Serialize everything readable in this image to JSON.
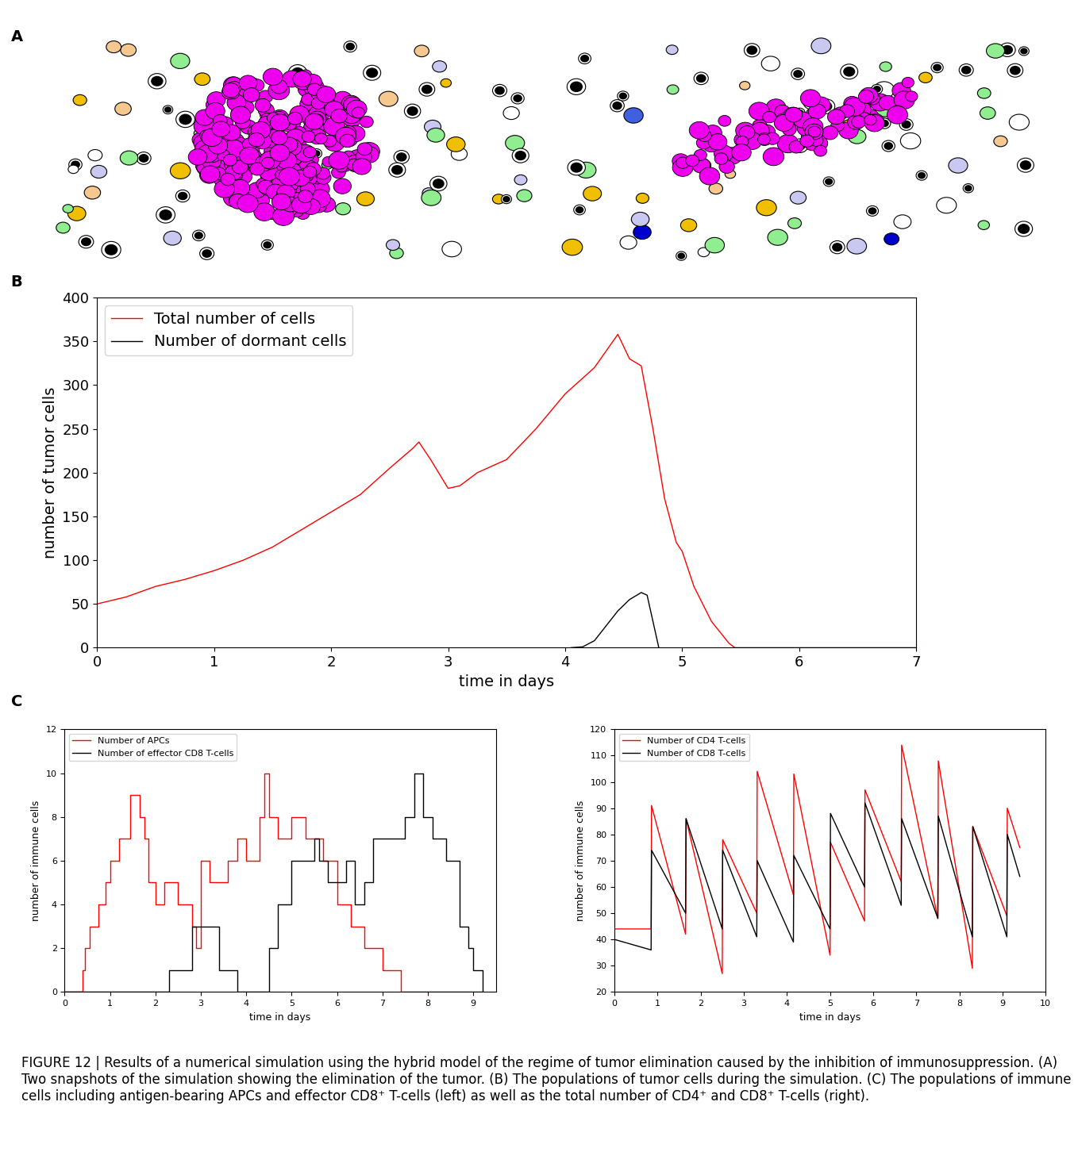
{
  "panel_labels": [
    "A",
    "B",
    "C"
  ],
  "caption": "FIGURE 12 | Results of a numerical simulation using the hybrid model of the regime of tumor elimination caused by the inhibition of immunosuppression. (A) Two snapshots of the simulation showing the elimination of the tumor. (B) The populations of tumor cells during the simulation. (C) The populations of immune cells including antigen-bearing APCs and effector CD8⁺ T-cells (left) as well as the total number of CD4⁺ and CD8⁺ T-cells (right).",
  "chart_data": [
    {
      "type": "line",
      "x_label": "time in days",
      "y_label": "number of tumor cells",
      "xlim": [
        0,
        7
      ],
      "xticks": [
        0,
        1,
        2,
        3,
        4,
        5,
        6,
        7
      ],
      "ylim": [
        0,
        400
      ],
      "yticks": [
        0,
        50,
        100,
        150,
        200,
        250,
        300,
        350,
        400
      ],
      "legend": "upper left",
      "grid": false,
      "series": [
        {
          "name": "Total number of cells",
          "color": "#ff0000",
          "line_style": "solid",
          "x": [
            0,
            0.25,
            0.5,
            0.75,
            1,
            1.25,
            1.5,
            1.75,
            2,
            2.25,
            2.5,
            2.7,
            2.75,
            2.85,
            3,
            3.1,
            3.25,
            3.5,
            3.75,
            4,
            4.25,
            4.45,
            4.55,
            4.65,
            4.75,
            4.85,
            4.95,
            5,
            5.1,
            5.25,
            5.4,
            5.45,
            7
          ],
          "values": [
            50,
            58,
            70,
            78,
            88,
            100,
            115,
            135,
            155,
            175,
            205,
            228,
            235,
            215,
            182,
            185,
            200,
            215,
            250,
            290,
            320,
            358,
            330,
            322,
            250,
            170,
            120,
            110,
            70,
            30,
            5,
            0,
            0
          ]
        },
        {
          "name": "Number of dormant cells",
          "color": "#000000",
          "line_style": "solid",
          "x": [
            4.05,
            4.15,
            4.25,
            4.35,
            4.45,
            4.55,
            4.65,
            4.7,
            4.75,
            4.8
          ],
          "values": [
            0,
            1,
            8,
            25,
            42,
            55,
            63,
            60,
            30,
            0
          ]
        }
      ]
    },
    {
      "type": "line",
      "x_label": "time in days",
      "y_label": "number of immune cells",
      "xlim": [
        0,
        9.5
      ],
      "xticks": [
        0,
        1,
        2,
        3,
        4,
        5,
        6,
        7,
        8,
        9
      ],
      "ylim": [
        0,
        12
      ],
      "yticks": [
        0,
        2,
        4,
        6,
        8,
        10,
        12
      ],
      "legend": "upper left",
      "grid": false,
      "series": [
        {
          "name": "Number of APCs",
          "color": "#ff0000",
          "line_style": "steps",
          "x": [
            0,
            0.4,
            0.45,
            0.55,
            0.75,
            0.9,
            1.0,
            1.2,
            1.45,
            1.65,
            1.75,
            1.85,
            2.0,
            2.2,
            2.5,
            2.8,
            2.9,
            3.0,
            3.2,
            3.6,
            3.8,
            4.0,
            4.3,
            4.4,
            4.5,
            4.7,
            5.0,
            5.3,
            5.5,
            5.7,
            6.0,
            6.3,
            6.6,
            7.0,
            7.4,
            9.2
          ],
          "values": [
            0,
            1,
            2,
            3,
            4,
            5,
            6,
            7,
            9,
            8,
            7,
            5,
            4,
            5,
            4,
            3,
            2,
            6,
            5,
            6,
            7,
            6,
            8,
            10,
            8,
            7,
            8,
            7,
            7,
            6,
            4,
            3,
            2,
            1,
            0,
            0
          ]
        },
        {
          "name": "Number of effector CD8 T-cells",
          "color": "#000000",
          "line_style": "steps",
          "x": [
            0,
            2.3,
            2.8,
            3.4,
            3.8,
            4.4,
            4.5,
            4.7,
            5.0,
            5.5,
            5.6,
            5.8,
            6.2,
            6.4,
            6.6,
            6.8,
            7.5,
            7.7,
            7.9,
            8.1,
            8.4,
            8.7,
            8.9,
            9.0,
            9.2
          ],
          "values": [
            0,
            1,
            3,
            1,
            0,
            0,
            2,
            4,
            6,
            7,
            6,
            5,
            6,
            4,
            5,
            7,
            8,
            10,
            8,
            7,
            6,
            3,
            2,
            1,
            0
          ]
        }
      ]
    },
    {
      "type": "line",
      "x_label": "time in days",
      "y_label": "number of immune cells",
      "xlim": [
        0,
        10
      ],
      "xticks": [
        0,
        1,
        2,
        3,
        4,
        5,
        6,
        7,
        8,
        9,
        10
      ],
      "ylim": [
        20,
        120
      ],
      "yticks": [
        20,
        30,
        40,
        50,
        60,
        70,
        80,
        90,
        100,
        110,
        120
      ],
      "legend": "upper left",
      "grid": false,
      "series": [
        {
          "name": "Number of CD4 T-cells",
          "color": "#ff0000",
          "line_style": "solid",
          "x": [
            0,
            0.85,
            0.86,
            1.65,
            1.66,
            2.5,
            2.51,
            3.3,
            3.31,
            4.15,
            4.16,
            5.0,
            5.01,
            5.8,
            5.81,
            6.65,
            6.66,
            7.5,
            7.51,
            8.3,
            8.31,
            9.1,
            9.11,
            9.4
          ],
          "values": [
            44,
            44,
            91,
            42,
            86,
            27,
            78,
            50,
            104,
            57,
            103,
            34,
            77,
            47,
            97,
            62,
            114,
            48,
            108,
            29,
            83,
            49,
            90,
            75
          ]
        },
        {
          "name": "Number of CD8 T-cells",
          "color": "#000000",
          "line_style": "solid",
          "x": [
            0,
            0.85,
            0.86,
            1.65,
            1.66,
            2.5,
            2.51,
            3.3,
            3.31,
            4.15,
            4.16,
            5.0,
            5.01,
            5.8,
            5.81,
            6.65,
            6.66,
            7.5,
            7.51,
            8.3,
            8.31,
            9.1,
            9.11,
            9.4
          ],
          "values": [
            40,
            36,
            74,
            50,
            86,
            44,
            74,
            41,
            70,
            39,
            72,
            44,
            88,
            60,
            92,
            53,
            86,
            48,
            87,
            41,
            83,
            41,
            80,
            64
          ]
        }
      ]
    }
  ]
}
